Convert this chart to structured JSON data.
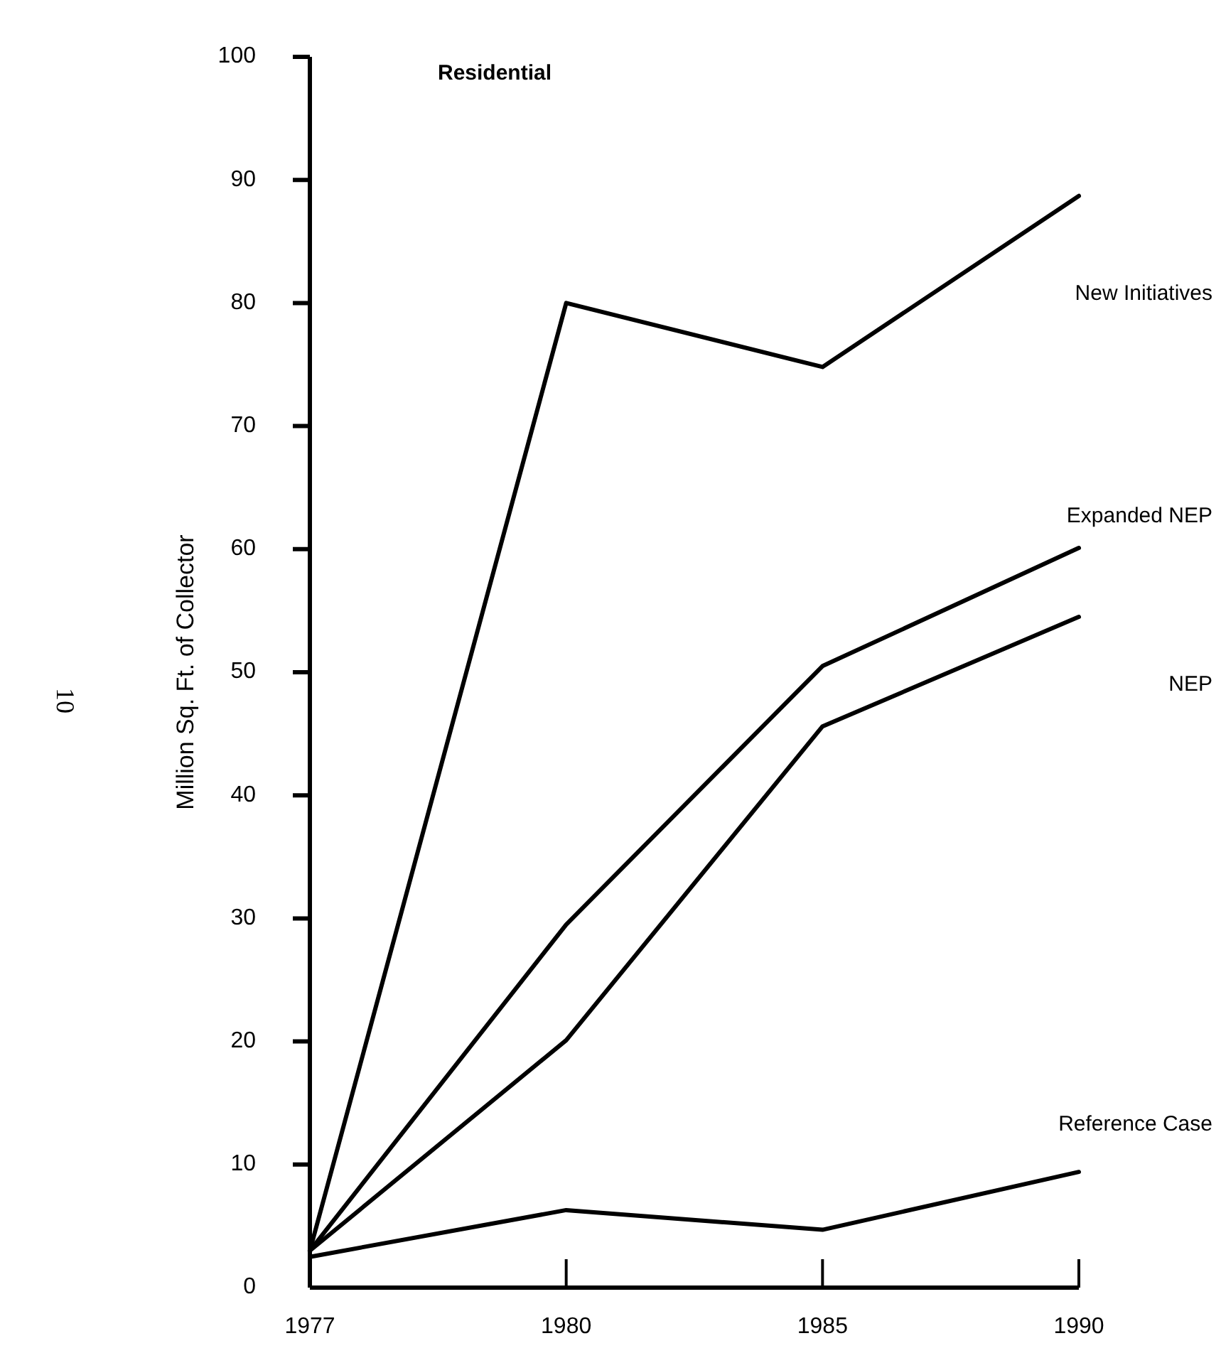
{
  "chart_data": {
    "type": "line",
    "title": "Residential",
    "ylabel": "Million Sq. Ft. of Collector",
    "categories": [
      "1977",
      "1980",
      "1985",
      "1990"
    ],
    "series": [
      {
        "name": "New Initiatives",
        "color": "#000000",
        "values": [
          3,
          80,
          74.8,
          88.7
        ]
      },
      {
        "name": "Expanded NEP",
        "color": "#000000",
        "values": [
          3,
          29.5,
          50.5,
          60.1
        ]
      },
      {
        "name": "NEP",
        "color": "#000000",
        "values": [
          3,
          20.1,
          45.6,
          54.5
        ]
      },
      {
        "name": "Reference Case",
        "color": "#000000",
        "values": [
          2.5,
          6.3,
          4.7,
          9.4
        ]
      }
    ],
    "ylim": [
      0,
      100
    ],
    "yticks": [
      0,
      10,
      20,
      30,
      40,
      50,
      60,
      70,
      80,
      90,
      100
    ],
    "grid": false,
    "marker": "none",
    "line_style": "solid",
    "annotations": [
      "10"
    ]
  }
}
